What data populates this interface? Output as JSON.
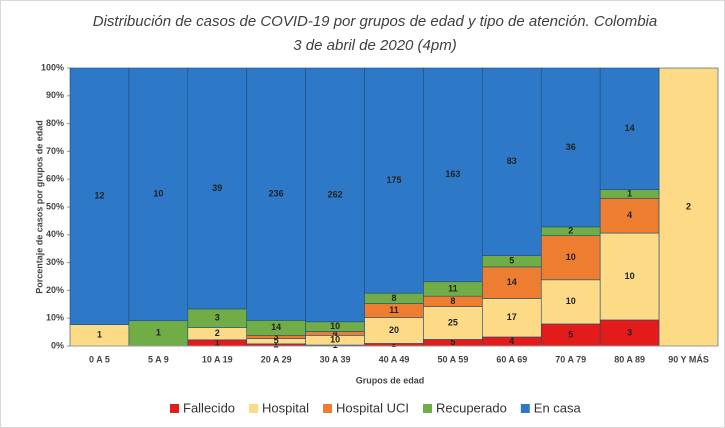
{
  "chart_data": {
    "type": "bar",
    "stacking": "percent",
    "title": "Distribución de casos de COVID-19 por grupos de edad y tipo de atención. Colombia",
    "subtitle": "3 de abril de 2020 (4pm)",
    "x_label": "Grupos de edad",
    "y_label": "Porcentaje de casos por grupos de edad",
    "categories": [
      "0 A 5",
      "5 A 9",
      "10 A 19",
      "20 A 29",
      "30 A 39",
      "40 A 49",
      "50 A 59",
      "60 A 69",
      "70 A 79",
      "80 A 89",
      "90 Y MÁS"
    ],
    "series": [
      {
        "name": "Fallecido",
        "color": "#e41b1b",
        "values": [
          0,
          0,
          1,
          2,
          1,
          2,
          5,
          4,
          5,
          3,
          0
        ]
      },
      {
        "name": "Hospital",
        "color": "#fddb86",
        "values": [
          1,
          0,
          2,
          5,
          10,
          20,
          25,
          17,
          10,
          10,
          2
        ]
      },
      {
        "name": "Hospital UCI",
        "color": "#ed7d31",
        "values": [
          0,
          0,
          0,
          3,
          4,
          11,
          8,
          14,
          10,
          4,
          0
        ]
      },
      {
        "name": "Recuperado",
        "color": "#70ad47",
        "values": [
          0,
          1,
          3,
          14,
          10,
          8,
          11,
          5,
          2,
          1,
          0
        ]
      },
      {
        "name": "En casa",
        "color": "#2e78c8",
        "values": [
          12,
          10,
          39,
          236,
          262,
          175,
          163,
          83,
          36,
          14,
          0
        ]
      }
    ],
    "ylim": [
      0,
      100
    ],
    "yticks": [
      {
        "value": 0,
        "label": "0%"
      },
      {
        "value": 10,
        "label": "10%"
      },
      {
        "value": 20,
        "label": "20%"
      },
      {
        "value": 30,
        "label": "30%"
      },
      {
        "value": 40,
        "label": "40%"
      },
      {
        "value": 50,
        "label": "50%"
      },
      {
        "value": 60,
        "label": "60%"
      },
      {
        "value": 70,
        "label": "70%"
      },
      {
        "value": 80,
        "label": "80%"
      },
      {
        "value": 90,
        "label": "90%"
      },
      {
        "value": 100,
        "label": "100%"
      }
    ],
    "legend": "bottom"
  }
}
